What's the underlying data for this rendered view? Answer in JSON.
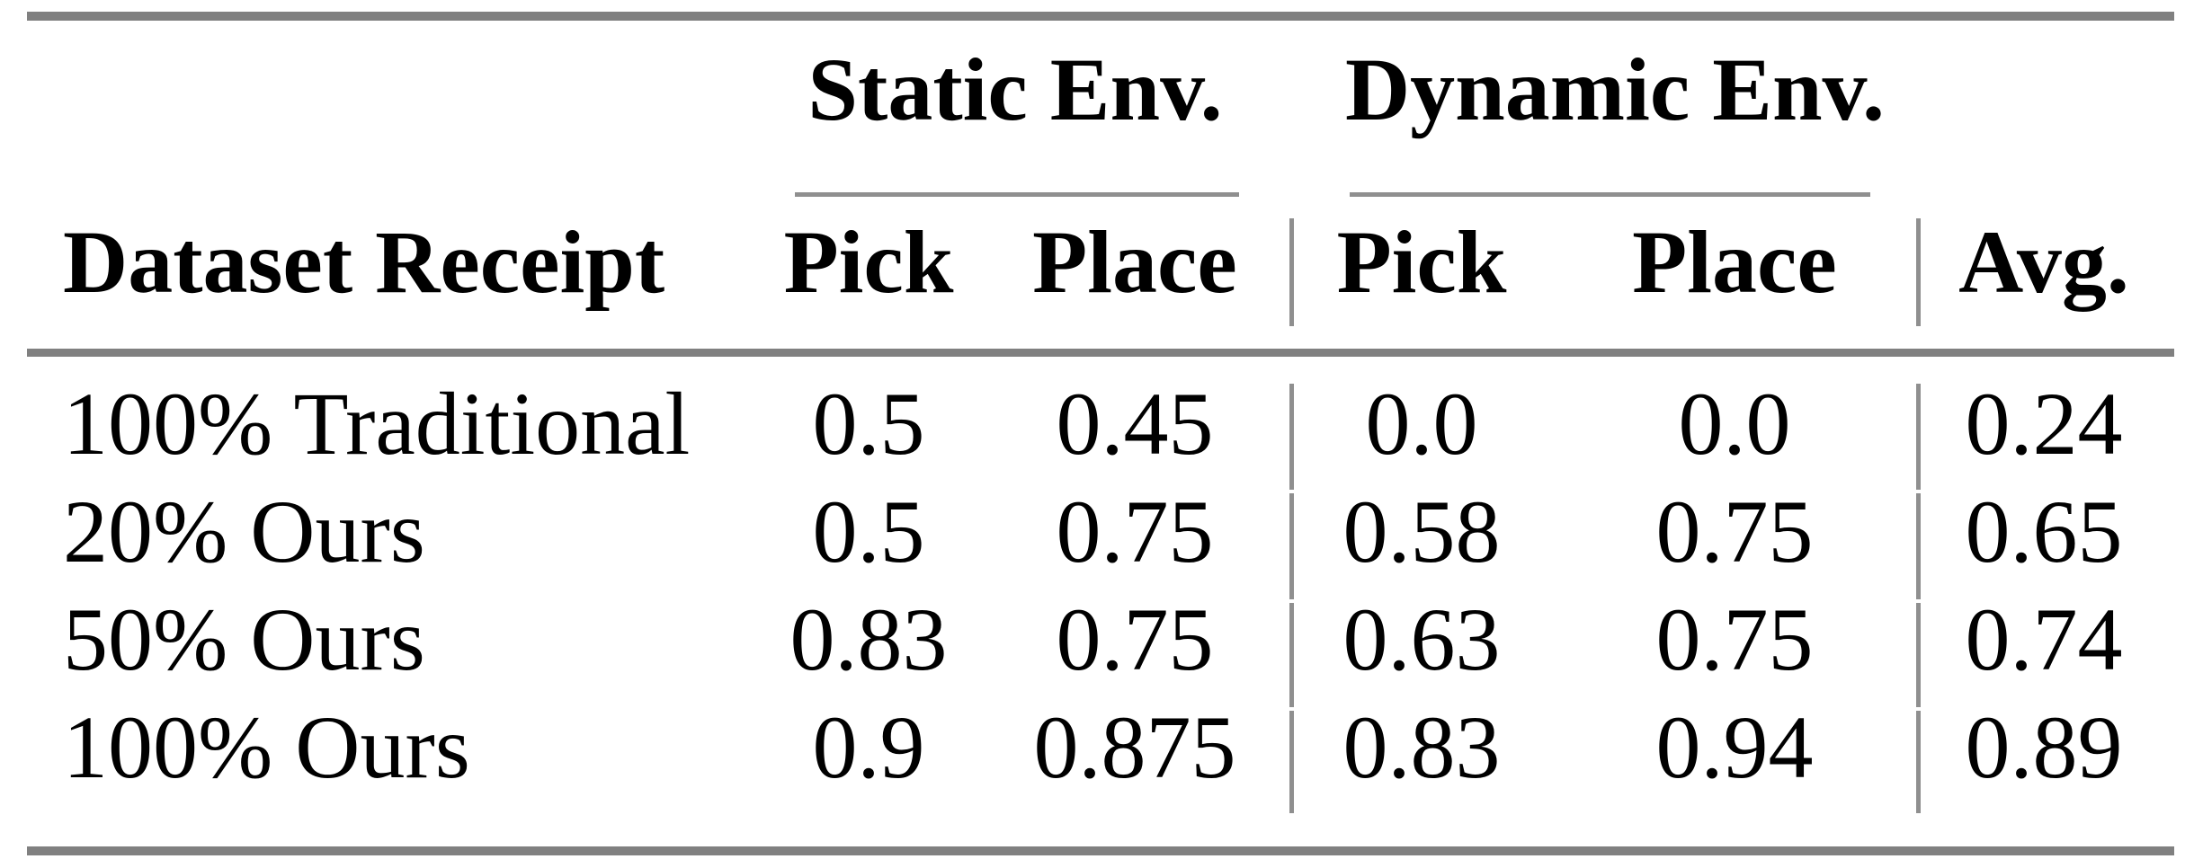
{
  "colors": {
    "background": "#ffffff",
    "text": "#000000",
    "rule_thick": "#808080",
    "rule_thin": "#8f8f8f"
  },
  "table": {
    "corner_header": "Dataset Receipt",
    "group_headers": [
      {
        "label": "Static Env."
      },
      {
        "label": "Dynamic Env."
      }
    ],
    "column_headers": [
      "Pick",
      "Place",
      "Pick",
      "Place",
      "Avg."
    ],
    "rows": [
      {
        "label": "100% Traditional",
        "values": [
          "0.5",
          "0.45",
          "0.0",
          "0.0",
          "0.24"
        ]
      },
      {
        "label": "20% Ours",
        "values": [
          "0.5",
          "0.75",
          "0.58",
          "0.75",
          "0.65"
        ]
      },
      {
        "label": "50% Ours",
        "values": [
          "0.83",
          "0.75",
          "0.63",
          "0.75",
          "0.74"
        ]
      },
      {
        "label": "100% Ours",
        "values": [
          "0.9",
          "0.875",
          "0.83",
          "0.94",
          "0.89"
        ]
      }
    ]
  },
  "chart_data": {
    "type": "table",
    "title": "",
    "row_header": "Dataset Receipt",
    "column_groups": [
      "Static Env.",
      "Dynamic Env."
    ],
    "columns": [
      "Static Env. Pick",
      "Static Env. Place",
      "Dynamic Env. Pick",
      "Dynamic Env. Place",
      "Avg."
    ],
    "rows": [
      {
        "label": "100% Traditional",
        "values": [
          0.5,
          0.45,
          0.0,
          0.0,
          0.24
        ]
      },
      {
        "label": "20% Ours",
        "values": [
          0.5,
          0.75,
          0.58,
          0.75,
          0.65
        ]
      },
      {
        "label": "50% Ours",
        "values": [
          0.83,
          0.75,
          0.63,
          0.75,
          0.74
        ]
      },
      {
        "label": "100% Ours",
        "values": [
          0.9,
          0.875,
          0.83,
          0.94,
          0.89
        ]
      }
    ]
  }
}
